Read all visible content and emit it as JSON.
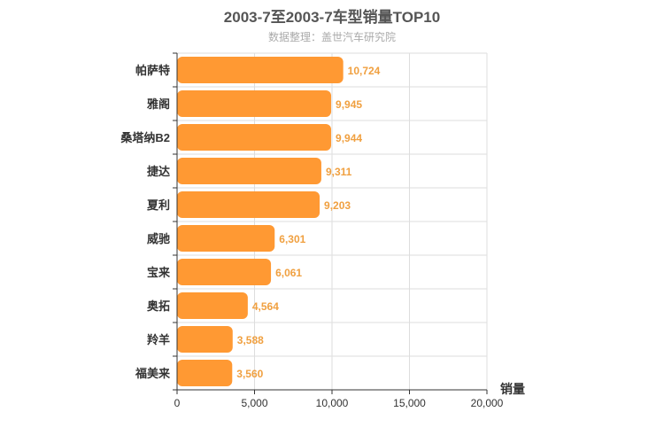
{
  "chart_data": {
    "type": "bar",
    "orientation": "horizontal",
    "title": "2003-7至2003-7车型销量TOP10",
    "subtitle": "数据整理：盖世汽车研究院",
    "xlabel": "销量",
    "ylabel": "",
    "xlim": [
      0,
      20000
    ],
    "xticks": [
      0,
      5000,
      10000,
      15000,
      20000
    ],
    "xtick_labels": [
      "0",
      "5,000",
      "10,000",
      "15,000",
      "20,000"
    ],
    "grid": true,
    "bar_color": "#ff9933",
    "label_color": "#f0a040",
    "categories": [
      "帕萨特",
      "雅阁",
      "桑塔纳B2",
      "捷达",
      "夏利",
      "威驰",
      "宝来",
      "奥拓",
      "羚羊",
      "福美来"
    ],
    "values": [
      10724,
      9945,
      9944,
      9311,
      9203,
      6301,
      6061,
      4564,
      3588,
      3560
    ],
    "value_labels": [
      "10,724",
      "9,945",
      "9,944",
      "9,311",
      "9,203",
      "6,301",
      "6,061",
      "4,564",
      "3,588",
      "3,560"
    ]
  }
}
